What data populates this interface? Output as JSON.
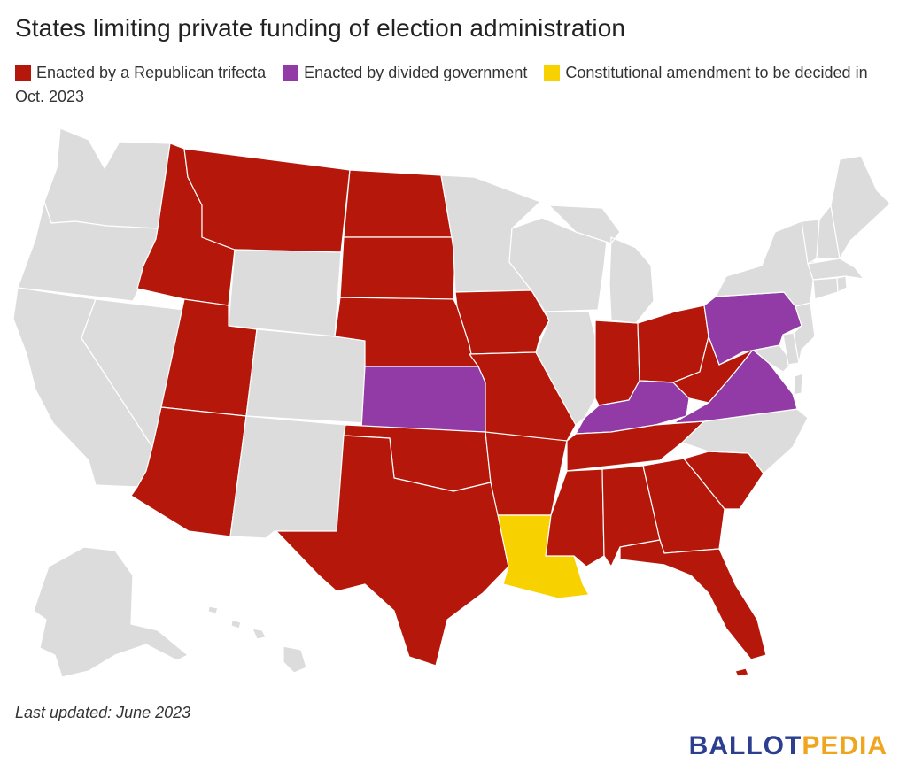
{
  "title": "States limiting private funding of election administration",
  "legend": [
    {
      "label": "Enacted by a Republican trifecta",
      "color": "#b5180b"
    },
    {
      "label": "Enacted by divided government",
      "color": "#923aa5"
    },
    {
      "label": "Constitutional amendment to be decided in Oct. 2023",
      "color": "#f8d100"
    }
  ],
  "colors": {
    "none": "#dcdcdc",
    "republican_trifecta": "#b5180b",
    "divided_government": "#923aa5",
    "constitutional_amendment": "#f8d100"
  },
  "states": {
    "republican_trifecta": [
      "Montana",
      "Idaho",
      "North Dakota",
      "South Dakota",
      "Nebraska",
      "Utah",
      "Arizona",
      "Iowa",
      "Missouri",
      "Arkansas",
      "Oklahoma",
      "Texas",
      "Indiana",
      "Ohio",
      "West Virginia",
      "Tennessee",
      "Mississippi",
      "Alabama",
      "Georgia",
      "South Carolina",
      "Florida"
    ],
    "divided_government": [
      "Kansas",
      "Kentucky",
      "Virginia",
      "Pennsylvania"
    ],
    "constitutional_amendment": [
      "Louisiana"
    ]
  },
  "footnote": "Last updated: June 2023",
  "brand": {
    "part1": "BALLOT",
    "part2": "PEDIA"
  }
}
